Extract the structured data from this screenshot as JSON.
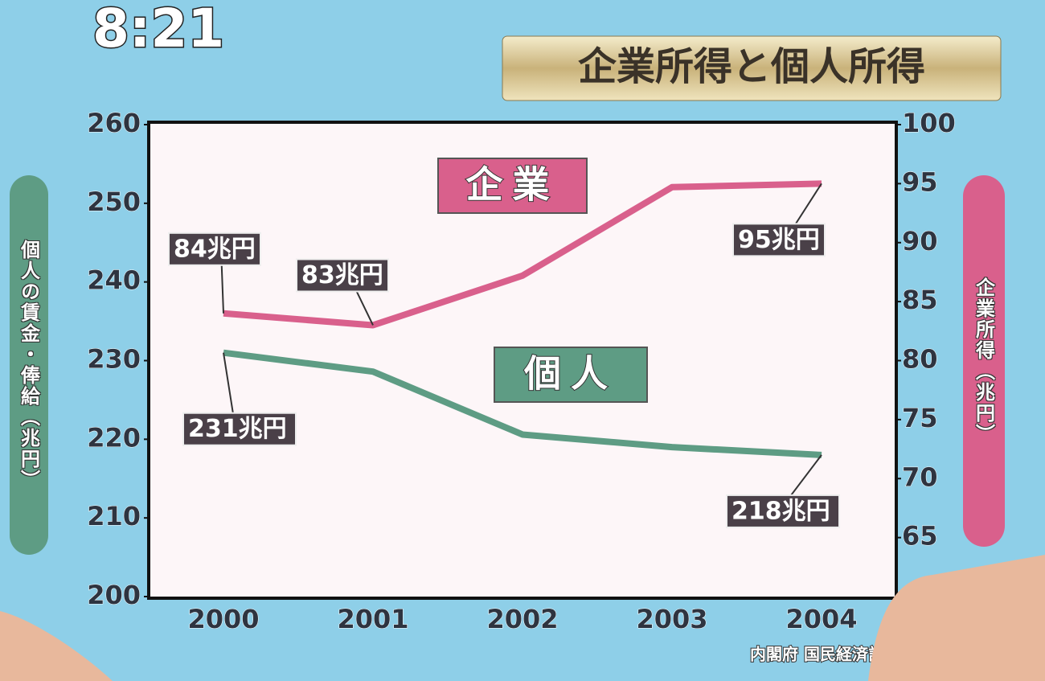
{
  "clock": "8:21",
  "chart_data": {
    "type": "line",
    "title": "企業所得と個人所得",
    "ylabel": "個人の賃金・俸給（兆円）",
    "y2label": "企業所得（兆円）",
    "source": "内閣府 国民経済計算",
    "categories": [
      "2000",
      "2001",
      "2002",
      "2003",
      "2004"
    ],
    "ylim": [
      200,
      260
    ],
    "yticks": [
      200,
      210,
      220,
      230,
      240,
      250,
      260
    ],
    "y2lim": [
      60,
      100
    ],
    "y2ticks": [
      65,
      70,
      75,
      80,
      85,
      90,
      95,
      100
    ],
    "series": [
      {
        "name": "企業",
        "color": "#d9608c",
        "axis": "y2",
        "values": [
          84,
          83,
          87.2,
          94.7,
          95
        ],
        "value_labels": [
          "84兆円",
          "83兆円",
          null,
          null,
          "95兆円"
        ]
      },
      {
        "name": "個人",
        "color": "#5e9c84",
        "values": [
          231,
          228.6,
          220.6,
          219,
          218
        ],
        "value_labels": [
          "231兆円",
          null,
          null,
          null,
          "218兆円"
        ]
      }
    ]
  }
}
